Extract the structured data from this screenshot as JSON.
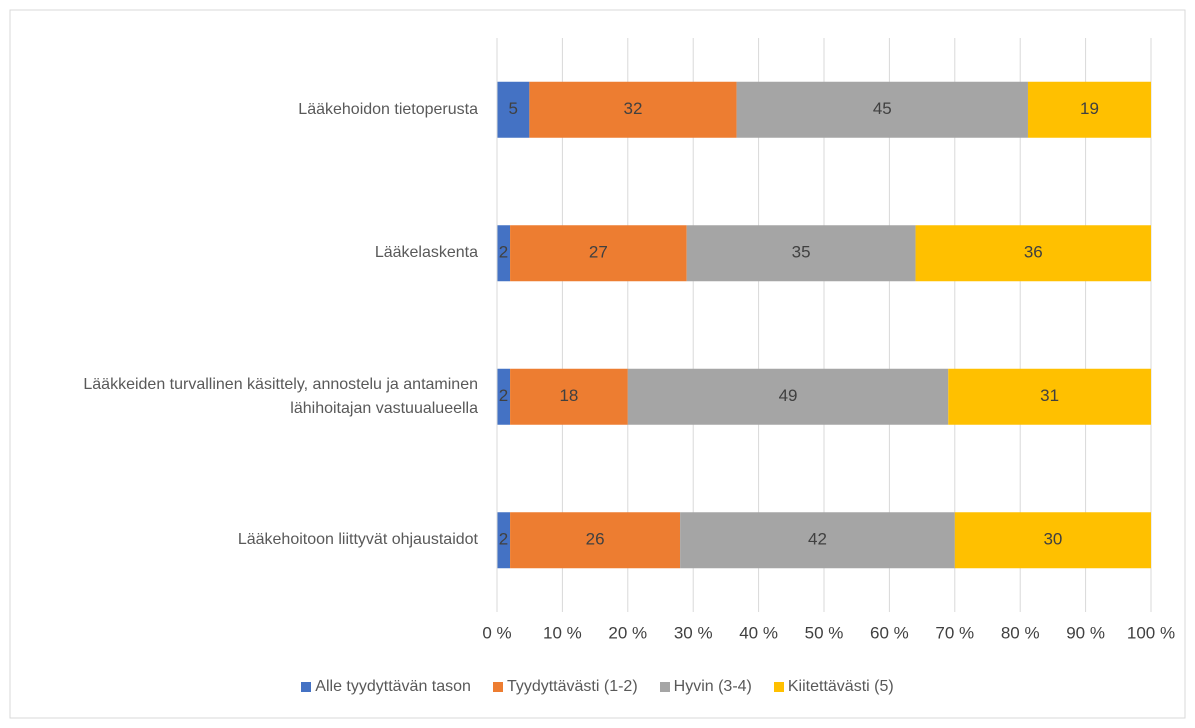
{
  "chart_data": {
    "type": "bar",
    "orientation": "horizontal",
    "stacked": "percent",
    "categories": [
      "Lääkehoidon tietoperusta",
      "Lääkelaskenta",
      "Lääkkeiden turvallinen käsittely, annostelu ja antaminen lähihoitajan vastuualueella",
      "Lääkehoitoon liittyvät ohjaustaidot"
    ],
    "series": [
      {
        "name": "Alle tyydyttävän tason",
        "color": "#4472c4",
        "values": [
          5,
          2,
          2,
          2
        ]
      },
      {
        "name": "Tyydyttävästi (1-2)",
        "color": "#ed7d31",
        "values": [
          32,
          27,
          18,
          26
        ]
      },
      {
        "name": "Hyvin (3-4)",
        "color": "#a5a5a5",
        "values": [
          45,
          35,
          49,
          42
        ]
      },
      {
        "name": "Kiitettävästi (5)",
        "color": "#ffc000",
        "values": [
          19,
          36,
          31,
          30
        ]
      }
    ],
    "xlim": [
      0,
      100
    ],
    "xticks": [
      {
        "value": 0,
        "label": "0 %"
      },
      {
        "value": 10,
        "label": "10 %"
      },
      {
        "value": 20,
        "label": "20 %"
      },
      {
        "value": 30,
        "label": "30 %"
      },
      {
        "value": 40,
        "label": "40 %"
      },
      {
        "value": 50,
        "label": "50 %"
      },
      {
        "value": 60,
        "label": "60 %"
      },
      {
        "value": 70,
        "label": "70 %"
      },
      {
        "value": 80,
        "label": "80 %"
      },
      {
        "value": 90,
        "label": "90 %"
      },
      {
        "value": 100,
        "label": "100 %"
      }
    ],
    "grid": true,
    "legend": "bottom"
  }
}
